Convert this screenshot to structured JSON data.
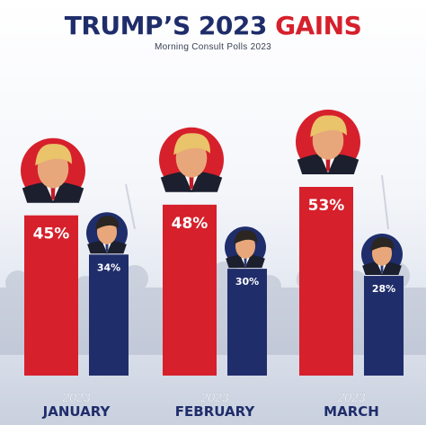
{
  "title_part1": "TRUMP’S 2023",
  "title_part2": "GAINS",
  "subtitle": "Morning Consult Polls 2023",
  "colors": {
    "trump": "#d6202c",
    "desantis": "#1f2d6b",
    "title_navy": "#1f2d6b",
    "title_red": "#d6202c"
  },
  "chart_data": {
    "type": "bar",
    "title": "TRUMP’S 2023 GAINS",
    "subtitle": "Morning Consult Polls 2023",
    "categories": [
      "JANUARY",
      "FEBRUARY",
      "MARCH"
    ],
    "year_labels": [
      "2023",
      "2023",
      "2023"
    ],
    "series": [
      {
        "values": [
          45,
          48,
          53
        ],
        "labels": [
          "45%",
          "48%",
          "53%"
        ],
        "color": "#d6202c"
      },
      {
        "values": [
          34,
          30,
          28
        ],
        "labels": [
          "34%",
          "30%",
          "28%"
        ],
        "color": "#1f2d6b"
      }
    ],
    "ylim": [
      0,
      60
    ],
    "grid": false,
    "legend": "none"
  }
}
